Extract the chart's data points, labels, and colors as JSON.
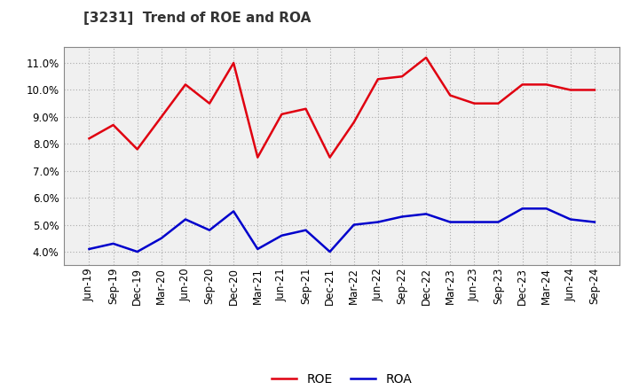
{
  "title": "[3231]  Trend of ROE and ROA",
  "labels": [
    "Jun-19",
    "Sep-19",
    "Dec-19",
    "Mar-20",
    "Jun-20",
    "Sep-20",
    "Dec-20",
    "Mar-21",
    "Jun-21",
    "Sep-21",
    "Dec-21",
    "Mar-22",
    "Jun-22",
    "Sep-22",
    "Dec-22",
    "Mar-23",
    "Jun-23",
    "Sep-23",
    "Dec-23",
    "Mar-24",
    "Jun-24",
    "Sep-24"
  ],
  "ROE": [
    8.2,
    8.7,
    7.8,
    9.0,
    10.2,
    9.5,
    11.0,
    7.5,
    9.1,
    9.3,
    7.5,
    8.8,
    10.4,
    10.5,
    11.2,
    9.8,
    9.5,
    9.5,
    10.2,
    10.2,
    10.0,
    10.0
  ],
  "ROA": [
    4.1,
    4.3,
    4.0,
    4.5,
    5.2,
    4.8,
    5.5,
    4.1,
    4.6,
    4.8,
    4.0,
    5.0,
    5.1,
    5.3,
    5.4,
    5.1,
    5.1,
    5.1,
    5.6,
    5.6,
    5.2,
    5.1
  ],
  "roe_color": "#e00010",
  "roa_color": "#0000cc",
  "background_color": "#ffffff",
  "plot_bg_color": "#f0f0f0",
  "grid_color": "#aaaaaa",
  "ylim": [
    3.5,
    11.6
  ],
  "yticks": [
    4.0,
    5.0,
    6.0,
    7.0,
    8.0,
    9.0,
    10.0,
    11.0
  ],
  "line_width": 1.8,
  "title_fontsize": 11,
  "tick_fontsize": 8.5,
  "legend_fontsize": 10
}
